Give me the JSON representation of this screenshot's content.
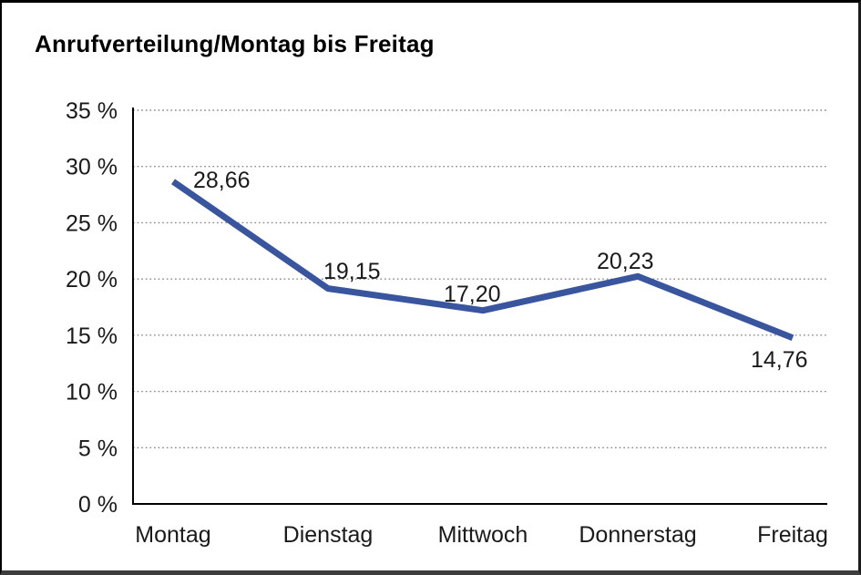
{
  "page": {
    "title": "Anrufverteilung/Montag bis Freitag"
  },
  "chart_data": {
    "type": "line",
    "title": "Anrufverteilung/Montag bis Freitag",
    "categories": [
      "Montag",
      "Dienstag",
      "Mittwoch",
      "Donnerstag",
      "Freitag"
    ],
    "series": [
      {
        "name": "Anrufverteilung",
        "values": [
          28.66,
          19.15,
          17.2,
          20.23,
          14.76
        ]
      }
    ],
    "value_labels": [
      "28,66",
      "19,15",
      "17,20",
      "20,23",
      "14,76"
    ],
    "unit": "%",
    "ylim": [
      0,
      35
    ],
    "yticks": [
      0,
      5,
      10,
      15,
      20,
      25,
      30,
      35
    ],
    "ytick_labels": [
      "0 %",
      "5 %",
      "10 %",
      "15 %",
      "20 %",
      "25 %",
      "30 %",
      "35 %"
    ],
    "xlabel": "",
    "ylabel": "",
    "grid": "horizontal-dotted",
    "legend": "none",
    "colors": {
      "line": "#39559E",
      "text": "#1a1a1a",
      "grid": "#8c8c8c",
      "axis": "#000000",
      "background": "#ffffff"
    }
  }
}
